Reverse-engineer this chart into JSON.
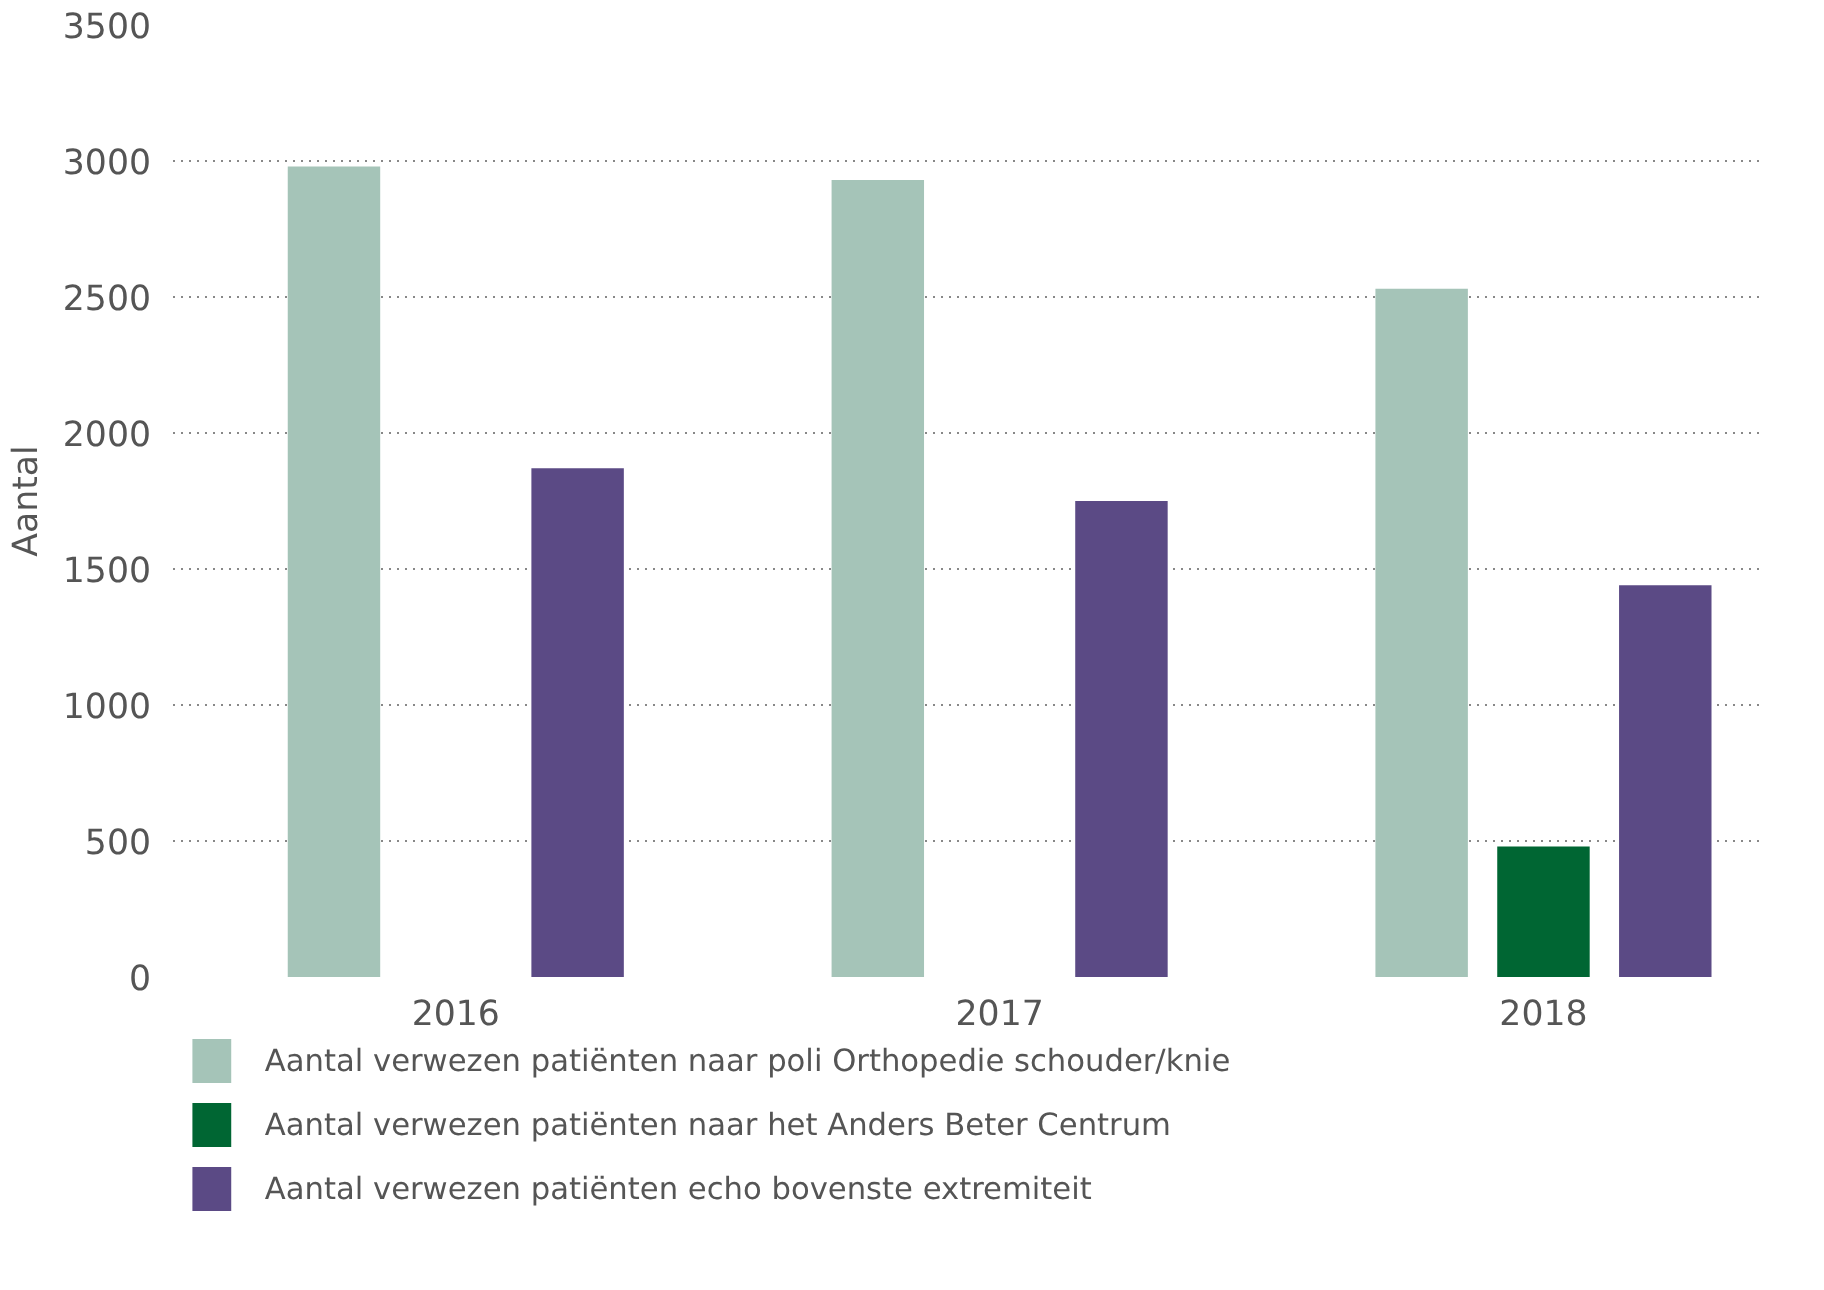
{
  "chart_data": {
    "type": "bar",
    "ylabel": "Aantal",
    "categories": [
      "2016",
      "2017",
      "2018"
    ],
    "series": [
      {
        "name": "Aantal verwezen patiënten naar poli Orthopedie schouder/knie",
        "color": "#a5c4b8",
        "values": [
          2980,
          2930,
          2530
        ]
      },
      {
        "name": "Aantal verwezen patiënten naar het Anders Beter Centrum",
        "color": "#006633",
        "values": [
          null,
          null,
          480
        ]
      },
      {
        "name": "Aantal verwezen patiënten echo bovenste extremiteit",
        "color": "#5b4a85",
        "values": [
          1870,
          1750,
          1440
        ]
      }
    ],
    "ylim": [
      0,
      3500
    ],
    "yticks": [
      0,
      500,
      1000,
      1500,
      2000,
      2500,
      3000,
      3500
    ],
    "grid": "y",
    "legend": "bottom"
  }
}
